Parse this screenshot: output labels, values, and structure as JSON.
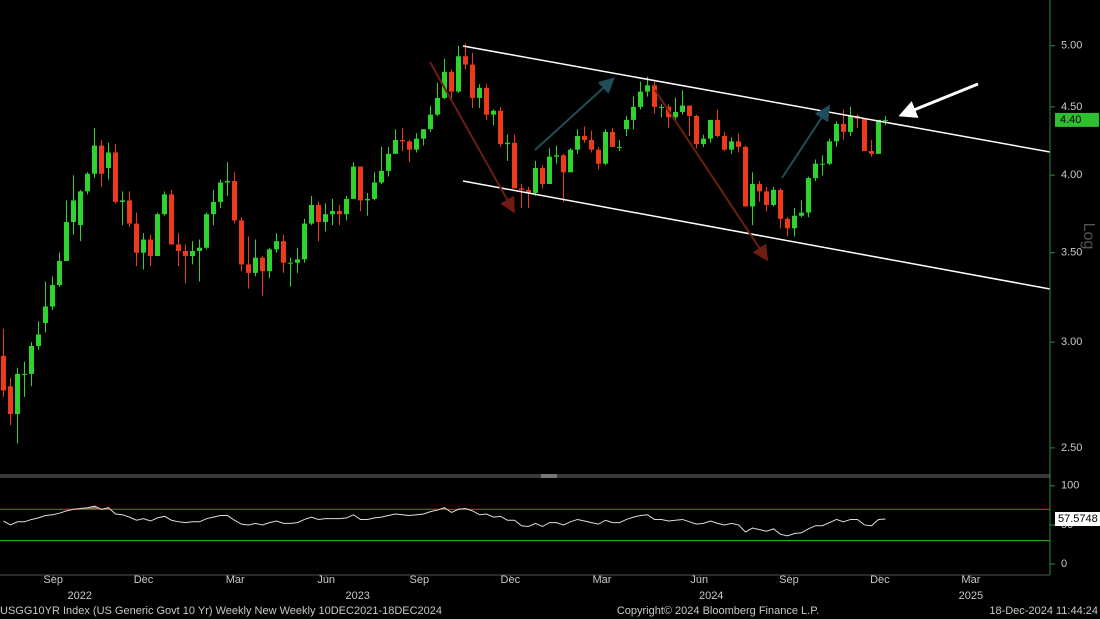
{
  "chart_data": {
    "type": "candlestick",
    "log_scale": true,
    "scale_label": "Log",
    "up_color": "#2fd32f",
    "down_color": "#ee3a1c",
    "xlim": [
      -0.5,
      149.5
    ],
    "ylim": [
      2.39,
      5.41
    ],
    "yticks": [
      {
        "value": 2.5,
        "label": "2.50"
      },
      {
        "value": 3,
        "label": "3.00"
      },
      {
        "value": 3.5,
        "label": "3.50"
      },
      {
        "value": 4,
        "label": "4.00"
      },
      {
        "value": 4.5,
        "label": "4.50"
      },
      {
        "value": 5,
        "label": "5.00"
      }
    ],
    "xticks": [
      {
        "value": 7.1,
        "label": "Sep"
      },
      {
        "value": 20.0,
        "label": "Dec"
      },
      {
        "value": 33.1,
        "label": "Mar"
      },
      {
        "value": 46.1,
        "label": "Jun"
      },
      {
        "value": 59.4,
        "label": "Sep"
      },
      {
        "value": 72.4,
        "label": "Dec"
      },
      {
        "value": 85.5,
        "label": "Mar"
      },
      {
        "value": 99.4,
        "label": "Jun"
      },
      {
        "value": 112.2,
        "label": "Sep"
      },
      {
        "value": 125.2,
        "label": "Dec"
      },
      {
        "value": 138.2,
        "label": "Mar"
      }
    ],
    "year_labels": [
      {
        "value": 10.9,
        "label": "2022"
      },
      {
        "value": 50.6,
        "label": "2023"
      },
      {
        "value": 101.1,
        "label": "2024"
      },
      {
        "value": 138.2,
        "label": "2025"
      }
    ],
    "last_price": {
      "value": 4.4,
      "label": "4.40"
    },
    "x": [
      0,
      1,
      2,
      3,
      4,
      5,
      6,
      7,
      8,
      9,
      10,
      11,
      12,
      13,
      14,
      15,
      16,
      17,
      18,
      19,
      20,
      21,
      22,
      23,
      24,
      25,
      26,
      27,
      28,
      29,
      30,
      31,
      32,
      33,
      34,
      35,
      36,
      37,
      38,
      39,
      40,
      41,
      42,
      43,
      44,
      45,
      46,
      47,
      48,
      49,
      50,
      51,
      52,
      53,
      54,
      55,
      56,
      57,
      58,
      59,
      60,
      61,
      62,
      63,
      64,
      65,
      66,
      67,
      68,
      69,
      70,
      71,
      72,
      73,
      74,
      75,
      76,
      77,
      78,
      79,
      80,
      81,
      82,
      83,
      84,
      85,
      86,
      87,
      88,
      89,
      90,
      91,
      92,
      93,
      94,
      95,
      96,
      97,
      98,
      99,
      100,
      101,
      102,
      103,
      104,
      105,
      106,
      107,
      108,
      109,
      110,
      111,
      112,
      113,
      114,
      115,
      116,
      117,
      118,
      119,
      120,
      121,
      122,
      123,
      124,
      125,
      126
    ],
    "ohlc": [
      [
        2.93,
        3.07,
        2.73,
        2.76
      ],
      [
        2.78,
        2.82,
        2.6,
        2.65
      ],
      [
        2.65,
        2.87,
        2.52,
        2.84
      ],
      [
        2.84,
        2.9,
        2.73,
        2.84
      ],
      [
        2.84,
        3.0,
        2.78,
        2.98
      ],
      [
        2.98,
        3.11,
        2.96,
        3.04
      ],
      [
        3.1,
        3.33,
        3.05,
        3.19
      ],
      [
        3.19,
        3.36,
        3.17,
        3.31
      ],
      [
        3.31,
        3.5,
        3.3,
        3.45
      ],
      [
        3.45,
        3.83,
        3.45,
        3.69
      ],
      [
        3.69,
        4.0,
        3.61,
        3.83
      ],
      [
        3.67,
        3.9,
        3.57,
        3.89
      ],
      [
        3.89,
        4.02,
        3.87,
        4.01
      ],
      [
        4.01,
        4.34,
        3.98,
        4.21
      ],
      [
        4.21,
        4.25,
        3.92,
        4.01
      ],
      [
        4.05,
        4.23,
        3.97,
        4.16
      ],
      [
        4.16,
        4.22,
        3.81,
        3.82
      ],
      [
        3.82,
        3.89,
        3.67,
        3.83
      ],
      [
        3.83,
        3.89,
        3.66,
        3.68
      ],
      [
        3.68,
        3.75,
        3.42,
        3.5
      ],
      [
        3.5,
        3.62,
        3.4,
        3.58
      ],
      [
        3.58,
        3.61,
        3.42,
        3.48
      ],
      [
        3.48,
        3.75,
        3.48,
        3.74
      ],
      [
        3.74,
        3.89,
        3.73,
        3.87
      ],
      [
        3.87,
        3.9,
        3.55,
        3.55
      ],
      [
        3.55,
        3.62,
        3.42,
        3.51
      ],
      [
        3.51,
        3.55,
        3.32,
        3.48
      ],
      [
        3.48,
        3.57,
        3.43,
        3.51
      ],
      [
        3.51,
        3.58,
        3.33,
        3.53
      ],
      [
        3.53,
        3.75,
        3.52,
        3.74
      ],
      [
        3.74,
        3.9,
        3.67,
        3.82
      ],
      [
        3.82,
        3.97,
        3.78,
        3.95
      ],
      [
        3.95,
        4.09,
        3.86,
        3.96
      ],
      [
        3.96,
        4.02,
        3.68,
        3.7
      ],
      [
        3.7,
        3.72,
        3.39,
        3.43
      ],
      [
        3.43,
        3.6,
        3.29,
        3.38
      ],
      [
        3.38,
        3.58,
        3.36,
        3.47
      ],
      [
        3.47,
        3.48,
        3.25,
        3.39
      ],
      [
        3.39,
        3.53,
        3.35,
        3.52
      ],
      [
        3.52,
        3.62,
        3.5,
        3.57
      ],
      [
        3.57,
        3.61,
        3.38,
        3.44
      ],
      [
        3.44,
        3.47,
        3.3,
        3.44
      ],
      [
        3.44,
        3.53,
        3.38,
        3.46
      ],
      [
        3.46,
        3.71,
        3.44,
        3.68
      ],
      [
        3.68,
        3.86,
        3.67,
        3.8
      ],
      [
        3.8,
        3.82,
        3.57,
        3.69
      ],
      [
        3.69,
        3.81,
        3.63,
        3.74
      ],
      [
        3.74,
        3.84,
        3.67,
        3.76
      ],
      [
        3.76,
        3.8,
        3.67,
        3.74
      ],
      [
        3.74,
        3.86,
        3.7,
        3.84
      ],
      [
        3.84,
        4.09,
        3.84,
        4.06
      ],
      [
        4.06,
        4.06,
        3.76,
        3.83
      ],
      [
        3.83,
        3.88,
        3.73,
        3.84
      ],
      [
        3.84,
        4.02,
        3.83,
        3.95
      ],
      [
        3.95,
        4.2,
        3.94,
        4.03
      ],
      [
        4.03,
        4.2,
        3.99,
        4.15
      ],
      [
        4.15,
        4.33,
        4.15,
        4.25
      ],
      [
        4.25,
        4.34,
        4.17,
        4.24
      ],
      [
        4.24,
        4.25,
        4.09,
        4.18
      ],
      [
        4.18,
        4.3,
        4.16,
        4.26
      ],
      [
        4.26,
        4.33,
        4.21,
        4.33
      ],
      [
        4.33,
        4.51,
        4.31,
        4.44
      ],
      [
        4.44,
        4.69,
        4.43,
        4.57
      ],
      [
        4.57,
        4.89,
        4.56,
        4.78
      ],
      [
        4.78,
        4.8,
        4.55,
        4.62
      ],
      [
        4.62,
        5.0,
        4.61,
        4.91
      ],
      [
        4.91,
        5.02,
        4.8,
        4.84
      ],
      [
        4.84,
        4.94,
        4.49,
        4.57
      ],
      [
        4.57,
        4.68,
        4.49,
        4.65
      ],
      [
        4.65,
        4.68,
        4.4,
        4.44
      ],
      [
        4.44,
        4.48,
        4.36,
        4.47
      ],
      [
        4.47,
        4.5,
        4.2,
        4.22
      ],
      [
        4.22,
        4.29,
        4.1,
        4.23
      ],
      [
        4.23,
        4.29,
        3.91,
        3.91
      ],
      [
        3.91,
        3.94,
        3.78,
        3.9
      ],
      [
        3.9,
        3.92,
        3.78,
        3.88
      ],
      [
        3.88,
        4.1,
        3.86,
        4.05
      ],
      [
        4.05,
        4.07,
        3.91,
        3.94
      ],
      [
        3.94,
        4.19,
        3.94,
        4.13
      ],
      [
        4.13,
        4.21,
        4.08,
        4.14
      ],
      [
        4.14,
        4.15,
        3.82,
        4.02
      ],
      [
        4.02,
        4.19,
        4.02,
        4.18
      ],
      [
        4.18,
        4.33,
        4.15,
        4.28
      ],
      [
        4.28,
        4.35,
        4.23,
        4.25
      ],
      [
        4.25,
        4.32,
        4.16,
        4.18
      ],
      [
        4.18,
        4.2,
        4.04,
        4.08
      ],
      [
        4.08,
        4.33,
        4.07,
        4.31
      ],
      [
        4.31,
        4.34,
        4.2,
        4.2
      ],
      [
        4.2,
        4.25,
        4.17,
        4.2
      ],
      [
        4.33,
        4.43,
        4.28,
        4.4
      ],
      [
        4.4,
        4.58,
        4.33,
        4.5
      ],
      [
        4.5,
        4.7,
        4.48,
        4.62
      ],
      [
        4.62,
        4.74,
        4.58,
        4.67
      ],
      [
        4.67,
        4.7,
        4.45,
        4.5
      ],
      [
        4.5,
        4.52,
        4.42,
        4.5
      ],
      [
        4.5,
        4.52,
        4.34,
        4.42
      ],
      [
        4.42,
        4.57,
        4.39,
        4.46
      ],
      [
        4.46,
        4.63,
        4.44,
        4.51
      ],
      [
        4.51,
        4.51,
        4.28,
        4.43
      ],
      [
        4.43,
        4.44,
        4.19,
        4.22
      ],
      [
        4.22,
        4.29,
        4.2,
        4.26
      ],
      [
        4.26,
        4.4,
        4.23,
        4.4
      ],
      [
        4.4,
        4.48,
        4.27,
        4.28
      ],
      [
        4.28,
        4.31,
        4.17,
        4.18
      ],
      [
        4.18,
        4.27,
        4.15,
        4.24
      ],
      [
        4.24,
        4.3,
        4.16,
        4.2
      ],
      [
        4.2,
        4.21,
        3.79,
        3.79
      ],
      [
        3.79,
        4.02,
        3.67,
        3.94
      ],
      [
        3.94,
        3.96,
        3.82,
        3.89
      ],
      [
        3.89,
        3.92,
        3.76,
        3.8
      ],
      [
        3.8,
        3.92,
        3.79,
        3.9
      ],
      [
        3.9,
        3.91,
        3.65,
        3.71
      ],
      [
        3.71,
        3.72,
        3.6,
        3.65
      ],
      [
        3.65,
        3.78,
        3.6,
        3.73
      ],
      [
        3.73,
        3.83,
        3.72,
        3.75
      ],
      [
        3.75,
        3.99,
        3.72,
        3.98
      ],
      [
        3.98,
        4.11,
        3.96,
        4.08
      ],
      [
        4.08,
        4.14,
        4.0,
        4.08
      ],
      [
        4.08,
        4.26,
        4.07,
        4.24
      ],
      [
        4.24,
        4.39,
        4.2,
        4.37
      ],
      [
        4.37,
        4.48,
        4.25,
        4.31
      ],
      [
        4.31,
        4.5,
        4.28,
        4.43
      ],
      [
        4.43,
        4.44,
        4.34,
        4.41
      ],
      [
        4.41,
        4.41,
        4.17,
        4.17
      ],
      [
        4.17,
        4.25,
        4.13,
        4.15
      ],
      [
        4.15,
        4.4,
        4.15,
        4.4
      ],
      [
        4.4,
        4.43,
        4.36,
        4.4
      ]
    ],
    "indicator": {
      "color": "#dcdcdc",
      "fill": "#b07a68",
      "ylim": [
        -14,
        110
      ],
      "yticks": [
        0,
        50,
        100
      ],
      "overbought": 70,
      "oversold": 30,
      "overbought_color": "#c0392b",
      "oversold_color": "#2fbf2f",
      "values": [
        55,
        50,
        54,
        54,
        57,
        59,
        62,
        63,
        65,
        68,
        70,
        71,
        72,
        74,
        70,
        72,
        64,
        63,
        60,
        56,
        58,
        55,
        59,
        61,
        56,
        54,
        53,
        54,
        54,
        58,
        60,
        62,
        62,
        56,
        51,
        50,
        52,
        50,
        53,
        55,
        52,
        52,
        53,
        57,
        60,
        57,
        58,
        58,
        58,
        59,
        63,
        57,
        57,
        59,
        60,
        62,
        64,
        63,
        62,
        63,
        64,
        67,
        69,
        72,
        66,
        70,
        71,
        68,
        63,
        64,
        60,
        61,
        56,
        56,
        49,
        48,
        52,
        48,
        53,
        53,
        50,
        54,
        57,
        55,
        53,
        51,
        56,
        53,
        53,
        57,
        60,
        62,
        63,
        57,
        57,
        55,
        56,
        57,
        54,
        51,
        52,
        55,
        52,
        50,
        52,
        50,
        41,
        46,
        44,
        42,
        45,
        38,
        36,
        39,
        40,
        45,
        49,
        49,
        53,
        57,
        54,
        57,
        57,
        50,
        49,
        57,
        57.5748
      ]
    },
    "footer": {
      "left": "USGG10YR Index (US Generic Govt 10 Yr) Weekly New  Weekly 10DEC2021-18DEC2024",
      "center": "Copyright© 2024 Bloomberg Finance L.P.",
      "right": "18-Dec-2024 11:44:24"
    }
  }
}
